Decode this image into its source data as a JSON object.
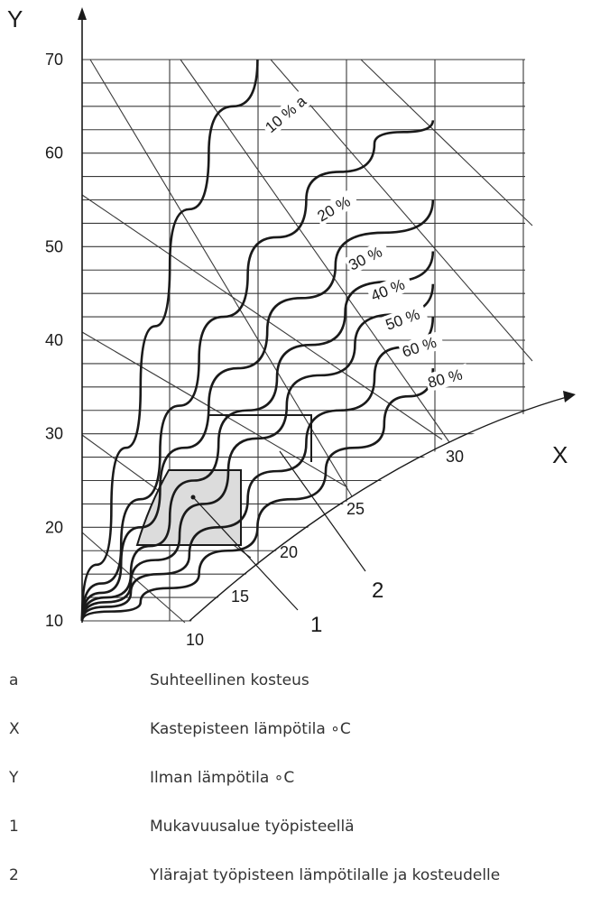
{
  "chart_data": {
    "type": "line",
    "title": "",
    "y_axis": {
      "label": "Y",
      "ticks": [
        "10",
        "20",
        "30",
        "40",
        "50",
        "60",
        "70"
      ],
      "ylim": [
        10,
        70
      ]
    },
    "x_axis": {
      "label": "X",
      "ticks": [
        "10",
        "15",
        "20",
        "25",
        "30"
      ]
    },
    "curve_labels": [
      "10 % a",
      "20 %",
      "30 %",
      "40 %",
      "50 %",
      "60 %",
      "80 %"
    ],
    "series": [
      {
        "name": "10 % a",
        "points": [
          [
            10,
            10
          ],
          [
            13,
            22
          ],
          [
            16,
            35
          ],
          [
            19,
            48
          ],
          [
            23,
            60
          ],
          [
            28,
            70
          ]
        ]
      },
      {
        "name": "20 %",
        "points": [
          [
            10,
            10
          ],
          [
            14,
            18
          ],
          [
            18,
            28
          ],
          [
            22,
            38
          ],
          [
            27,
            47
          ],
          [
            33,
            55
          ],
          [
            40,
            61
          ],
          [
            46,
            63.5
          ]
        ]
      },
      {
        "name": "30 %",
        "points": [
          [
            10,
            10
          ],
          [
            14,
            16
          ],
          [
            18,
            24
          ],
          [
            23,
            33
          ],
          [
            29,
            41
          ],
          [
            36,
            48
          ],
          [
            46,
            55
          ]
        ]
      },
      {
        "name": "40 %",
        "points": [
          [
            10,
            10
          ],
          [
            15,
            15
          ],
          [
            19,
            21
          ],
          [
            24,
            29
          ],
          [
            30,
            36
          ],
          [
            37,
            43
          ],
          [
            46,
            49.5
          ]
        ]
      },
      {
        "name": "50 %",
        "points": [
          [
            10,
            10
          ],
          [
            15,
            14
          ],
          [
            20,
            19
          ],
          [
            25,
            26
          ],
          [
            31,
            33
          ],
          [
            38,
            39.5
          ],
          [
            46,
            46
          ]
        ]
      },
      {
        "name": "60 %",
        "points": [
          [
            10,
            10
          ],
          [
            15,
            13
          ],
          [
            21,
            17
          ],
          [
            27,
            23
          ],
          [
            33,
            29
          ],
          [
            40,
            36
          ],
          [
            46,
            42.5
          ]
        ]
      },
      {
        "name": "80 %",
        "points": [
          [
            10,
            10
          ],
          [
            16,
            12
          ],
          [
            22,
            15
          ],
          [
            28,
            20
          ],
          [
            35,
            26
          ],
          [
            41,
            31
          ],
          [
            46,
            37
          ]
        ]
      }
    ],
    "annotations": [
      "1",
      "2"
    ],
    "grid": true
  },
  "legend": [
    {
      "key": "a",
      "text": "Suhteellinen kosteus"
    },
    {
      "key": "X",
      "text": "Kastepisteen lämpötila ∘C"
    },
    {
      "key": "Y",
      "text": "Ilman lämpötila ∘C"
    },
    {
      "key": "1",
      "text": "Mukavuusalue työpisteellä"
    },
    {
      "key": "2",
      "text": "Ylärajat työpisteen lämpötilalle ja kosteudelle"
    }
  ]
}
